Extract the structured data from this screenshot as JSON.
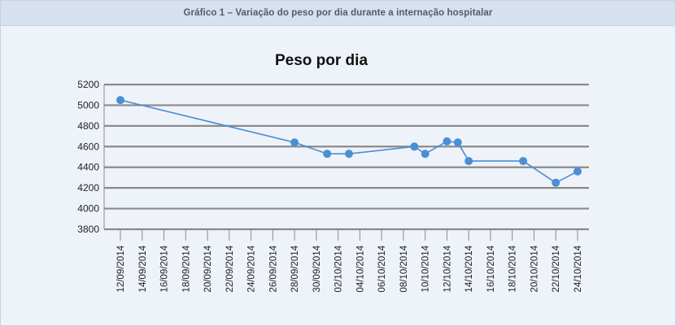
{
  "figure": {
    "caption": "Gráfico 1 – Variação do peso por dia durante a internação hospitalar"
  },
  "chart_data": {
    "type": "line",
    "title": "Peso por dia",
    "xlabel": "",
    "ylabel": "",
    "ylim": [
      3800,
      5200
    ],
    "yticks": [
      3800,
      4000,
      4200,
      4400,
      4600,
      4800,
      5000,
      5200
    ],
    "x_tick_labels": [
      "12/09/2014",
      "14/09/2014",
      "16/09/2014",
      "18/09/2014",
      "20/09/2014",
      "22/09/2014",
      "24/09/2014",
      "26/09/2014",
      "28/09/2014",
      "30/09/2014",
      "02/10/2014",
      "04/10/2014",
      "06/10/2014",
      "08/10/2014",
      "10/10/2014",
      "12/10/2014",
      "14/10/2014",
      "16/10/2014",
      "18/10/2014",
      "20/10/2014",
      "22/10/2014",
      "24/10/2014"
    ],
    "grid": true,
    "line_color": "#4a8fd4",
    "series": [
      {
        "x": [
          "12/09/2014",
          "28/09/2014",
          "01/10/2014",
          "03/10/2014",
          "09/10/2014",
          "10/10/2014",
          "12/10/2014",
          "13/10/2014",
          "14/10/2014",
          "19/10/2014",
          "22/10/2014",
          "24/10/2014"
        ],
        "values": [
          5050,
          4640,
          4530,
          4530,
          4600,
          4530,
          4650,
          4640,
          4460,
          4460,
          4250,
          4360
        ]
      }
    ]
  }
}
